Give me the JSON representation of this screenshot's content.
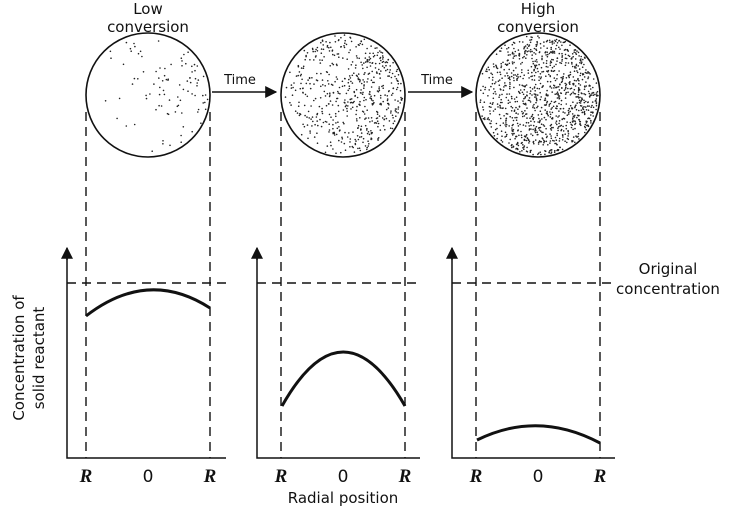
{
  "labels": {
    "low": [
      "Low",
      "conversion"
    ],
    "high": [
      "High",
      "conversion"
    ]
  },
  "time_arrows": [
    "Time",
    "Time"
  ],
  "y_axis_label": [
    "Concentration of",
    "solid reactant"
  ],
  "original_concentration": [
    "Original",
    "concentration"
  ],
  "x_axis_label": "Radial position",
  "ticks": [
    [
      "R",
      "0",
      "R"
    ],
    [
      "R",
      "0",
      "R"
    ],
    [
      "R",
      "0",
      "R"
    ]
  ]
}
